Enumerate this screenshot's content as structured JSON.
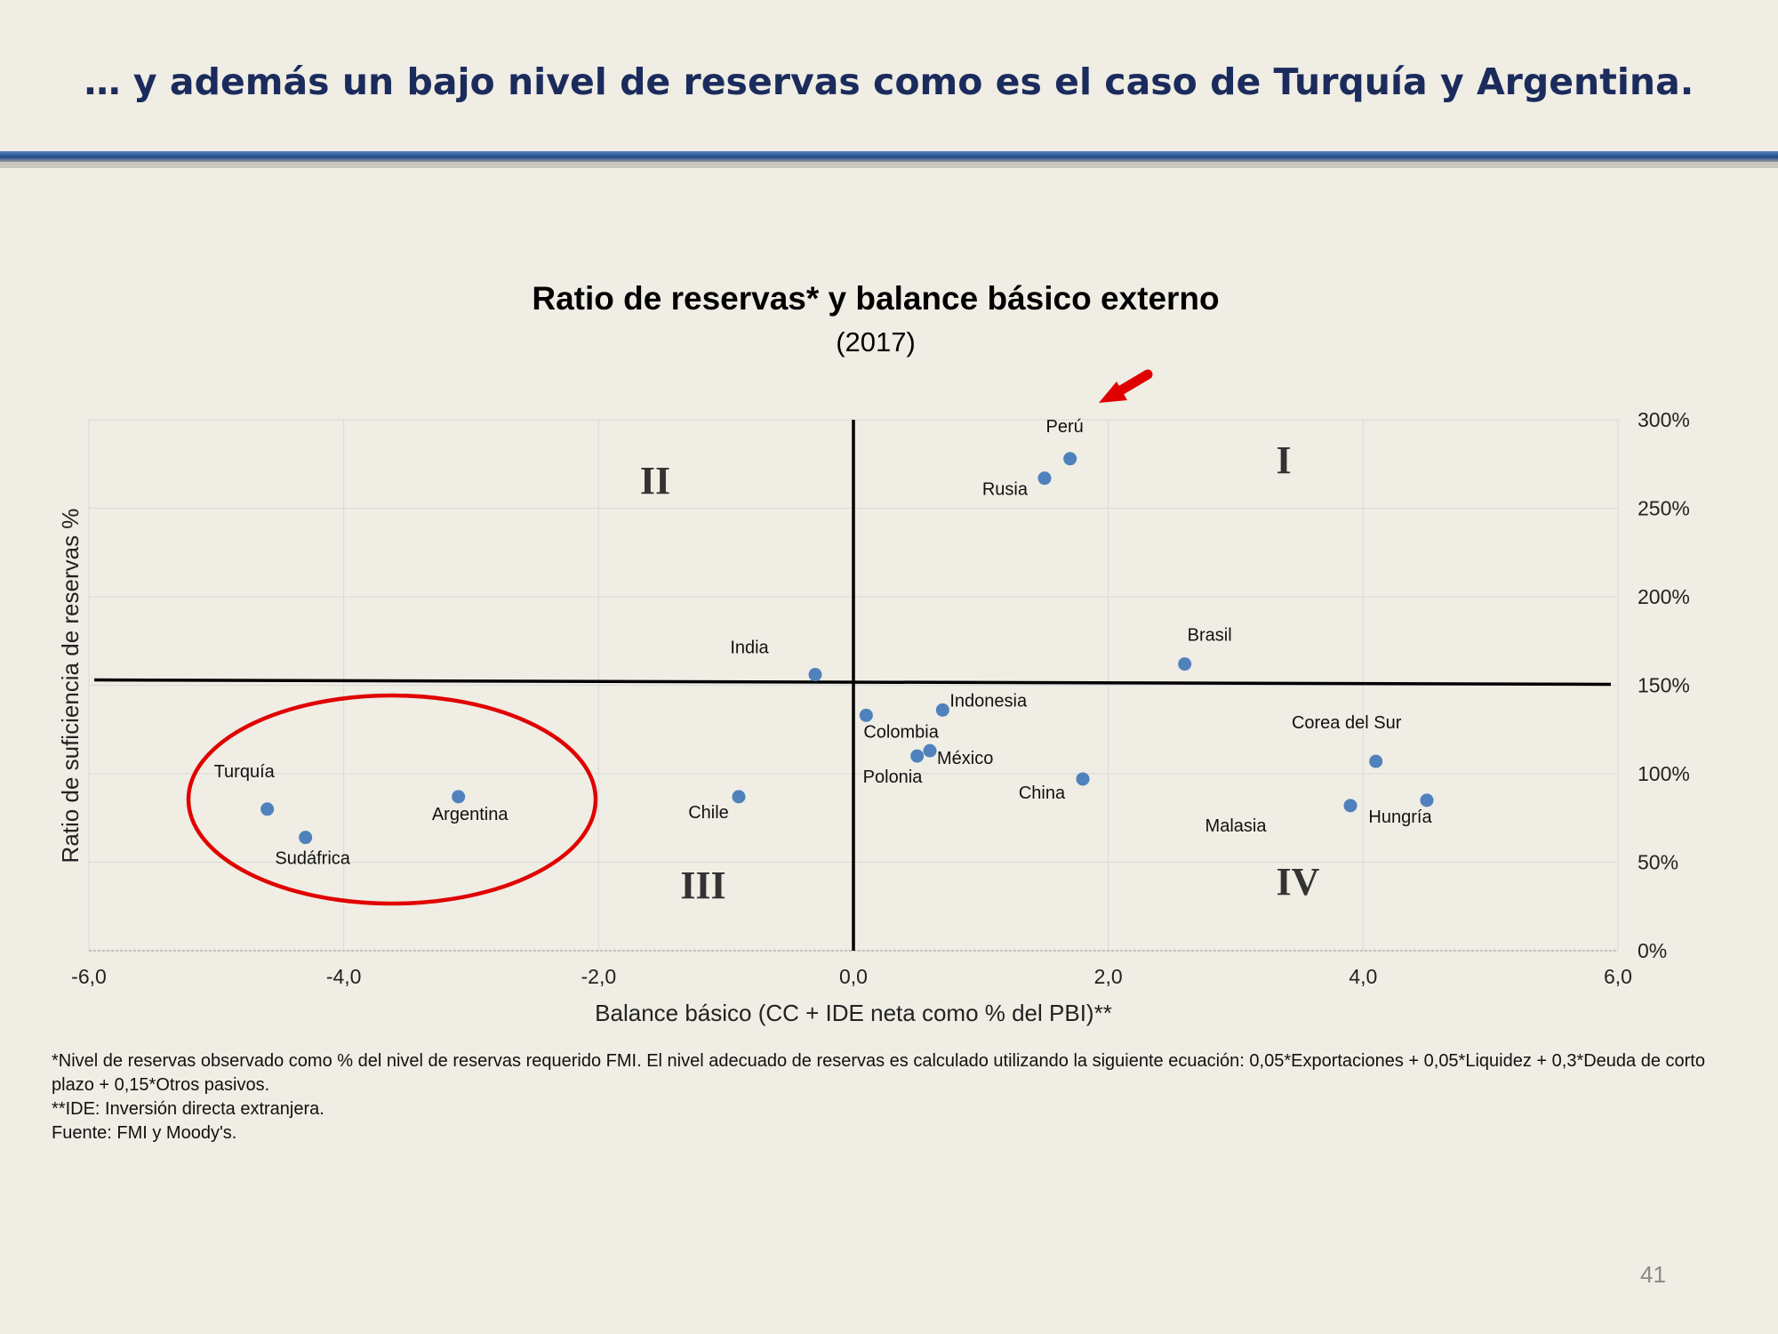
{
  "slide": {
    "title": "… y además un bajo nivel de reservas como es el caso de Turquía y Argentina.",
    "page_number": "41",
    "footnotes": [
      "*Nivel de reservas observado como % del nivel de reservas requerido FMI. El nivel adecuado de reservas es calculado utilizando la siguiente ecuación: 0,05*Exportaciones + 0,05*Liquidez + 0,3*Deuda de corto plazo + 0,15*Otros pasivos.",
      "**IDE: Inversión directa extranjera.",
      "Fuente: FMI y Moody's."
    ]
  },
  "colors": {
    "title": "#1b2b5c",
    "rule": "#2a5591",
    "point": "#4f81bd",
    "highlight": "#e00000",
    "axis": "#000000",
    "grid": "#d9d9d9"
  },
  "chart_data": {
    "type": "scatter",
    "title": "Ratio de reservas* y balance básico externo",
    "subtitle": "(2017)",
    "xlabel": "Balance básico (CC + IDE neta como % del PBI)**",
    "ylabel": "Ratio de suficiencia de reservas %",
    "xlim": [
      -6,
      6
    ],
    "ylim": [
      0,
      300
    ],
    "x_ticks": [
      "-6,0",
      "-4,0",
      "-2,0",
      "0,0",
      "2,0",
      "4,0",
      "6,0"
    ],
    "y_ticks": [
      "0%",
      "50%",
      "100%",
      "150%",
      "200%",
      "250%",
      "300%"
    ],
    "y_axis_side": "right",
    "grid": true,
    "horizontal_reference": 152,
    "vertical_reference": 0,
    "quadrants": [
      "I",
      "II",
      "III",
      "IV"
    ],
    "points": [
      {
        "label": "Perú",
        "x": 1.7,
        "y": 278
      },
      {
        "label": "Rusia",
        "x": 1.5,
        "y": 267
      },
      {
        "label": "Brasil",
        "x": 2.6,
        "y": 162
      },
      {
        "label": "India",
        "x": -0.3,
        "y": 156
      },
      {
        "label": "Indonesia",
        "x": 0.7,
        "y": 136
      },
      {
        "label": "Colombia",
        "x": 0.1,
        "y": 133
      },
      {
        "label": "México",
        "x": 0.6,
        "y": 113
      },
      {
        "label": "Polonia",
        "x": 0.5,
        "y": 110
      },
      {
        "label": "China",
        "x": 1.8,
        "y": 97
      },
      {
        "label": "Corea del Sur",
        "x": 4.1,
        "y": 107
      },
      {
        "label": "Hungría",
        "x": 4.5,
        "y": 85
      },
      {
        "label": "Malasia",
        "x": 3.9,
        "y": 82
      },
      {
        "label": "Chile",
        "x": -0.9,
        "y": 87
      },
      {
        "label": "Argentina",
        "x": -3.1,
        "y": 87
      },
      {
        "label": "Turquía",
        "x": -4.6,
        "y": 80
      },
      {
        "label": "Sudáfrica",
        "x": -4.3,
        "y": 64
      }
    ],
    "annotations": [
      {
        "type": "ellipse",
        "note": "highlights Turquía, Sudáfrica, Argentina"
      },
      {
        "type": "arrow",
        "note": "points to Perú"
      }
    ]
  }
}
